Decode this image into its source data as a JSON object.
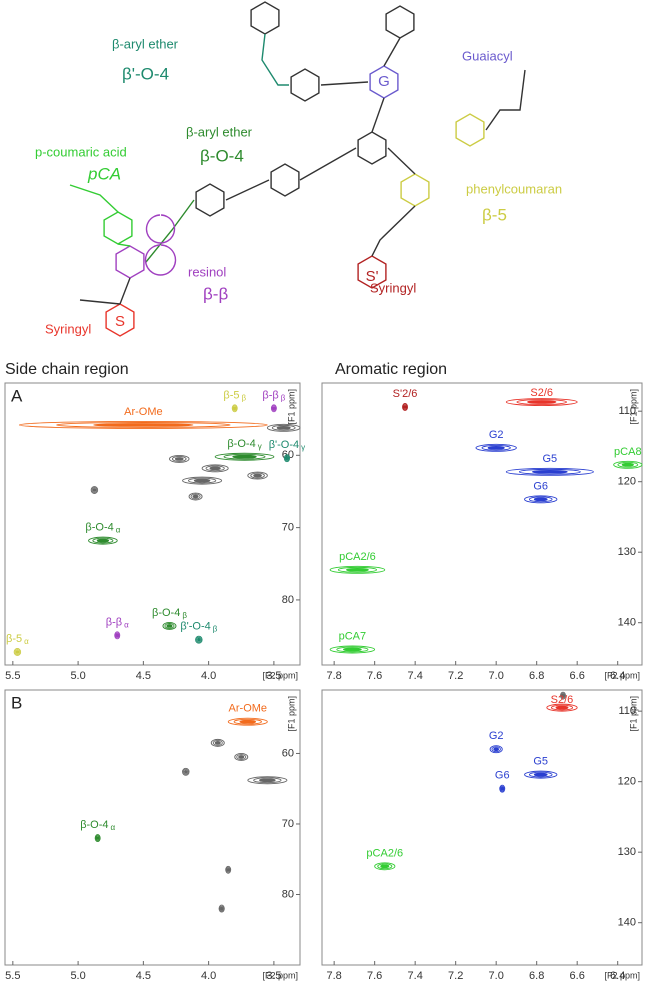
{
  "structure": {
    "labels": [
      "β-aryl ether",
      "β'-O-4",
      "Guaiacyl",
      "β-aryl ether",
      "β-O-4",
      "p-coumaric acid",
      "pCA",
      "phenylcoumaran",
      "β-5",
      "resinol",
      "β-β",
      "Syringyl",
      "Syringyl",
      "G",
      "S'",
      "S"
    ]
  },
  "spectra": {
    "headings": [
      "Side chain region",
      "Aromatic region"
    ],
    "panels": [
      {
        "letter": "A",
        "xlabel": "[F2 ppm]",
        "ylabel": "[F1 ppm]",
        "xlim": [
          5.56,
          3.3
        ],
        "xticks": [
          5.5,
          {
            "value": 5,
            "label": "5.0"
          },
          4.5,
          {
            "value": 4,
            "label": "4.0"
          },
          3.5
        ],
        "ylim": [
          50,
          89
        ],
        "yticks": [
          60,
          70,
          80
        ],
        "unassigned_color": "#666666",
        "peaks": [
          {
            "label": "Ar-OMe",
            "x": [
              5.45,
              3.55
            ],
            "y": 55.8,
            "color": "#f26b1d"
          },
          {
            "label": "β-5",
            "sub": "β",
            "x": [
              3.8,
              3.8
            ],
            "y": 53.5,
            "color": "#cccc44"
          },
          {
            "label": "β-β",
            "sub": "β",
            "x": [
              3.5,
              3.5
            ],
            "y": 53.5,
            "color": "#a040c0"
          },
          {
            "label": "β-O-4",
            "sub": "γ",
            "x": [
              3.95,
              3.5
            ],
            "y": 60.2,
            "color": "#2e8b2e"
          },
          {
            "label": "β'-O-4",
            "sub": "γ",
            "x": [
              3.42,
              3.38
            ],
            "y": 60.4,
            "color": "#1e8a6e"
          },
          {
            "label": "β-O-4",
            "sub": "α",
            "x": [
              4.92,
              4.7
            ],
            "y": 71.8,
            "color": "#2e8b2e"
          },
          {
            "label": "β-O-4",
            "sub": "β",
            "x": [
              4.35,
              4.25
            ],
            "y": 83.6,
            "color": "#2e8b2e"
          },
          {
            "label": "β'-O-4",
            "sub": "β",
            "x": [
              4.1,
              4.05
            ],
            "y": 85.5,
            "color": "#1e8a6e"
          },
          {
            "label": "β-β",
            "sub": "α",
            "x": [
              4.71,
              4.69
            ],
            "y": 84.9,
            "color": "#a040c0"
          },
          {
            "label": "β-5",
            "sub": "α",
            "x": [
              5.49,
              5.44
            ],
            "y": 87.2,
            "color": "#cccc44"
          }
        ],
        "unassigned": [
          {
            "x": [
              3.55,
              3.3
            ],
            "y": 56.2
          },
          {
            "x": [
              4.3,
              4.15
            ],
            "y": 60.5
          },
          {
            "x": [
              4.05,
              3.85
            ],
            "y": 61.8
          },
          {
            "x": [
              4.2,
              3.9
            ],
            "y": 63.5
          },
          {
            "x": [
              4.15,
              4.05
            ],
            "y": 65.7
          },
          {
            "x": [
              4.9,
              4.85
            ],
            "y": 64.8
          },
          {
            "x": [
              3.7,
              3.55
            ],
            "y": 62.8
          }
        ]
      },
      {
        "letter": "",
        "xlabel": "[F2 ppm]",
        "ylabel": "[F1 ppm]",
        "xlim": [
          7.86,
          6.28
        ],
        "xticks": [
          7.8,
          7.6,
          7.4,
          7.2,
          {
            "value": 7,
            "label": "7.0"
          },
          6.8,
          6.6,
          6.4
        ],
        "ylim": [
          106,
          146
        ],
        "yticks": [
          110,
          120,
          130,
          140
        ],
        "unassigned_color": "#666666",
        "peaks": [
          {
            "label": "S'2/6",
            "x": [
              7.46,
              7.44
            ],
            "y": 109.4,
            "color": "#b22222"
          },
          {
            "label": "S2/6",
            "x": [
              6.95,
              6.6
            ],
            "y": 108.7,
            "color": "#e8352b"
          },
          {
            "label": "G2",
            "x": [
              7.1,
              6.9
            ],
            "y": 115.2,
            "color": "#2a3fd0"
          },
          {
            "label": "G5",
            "x": [
              6.95,
              6.52
            ],
            "y": 118.6,
            "color": "#2a3fd0"
          },
          {
            "label": "G6",
            "x": [
              6.86,
              6.7
            ],
            "y": 122.5,
            "color": "#2a3fd0"
          },
          {
            "label": "pCA8",
            "x": [
              6.42,
              6.28
            ],
            "y": 117.6,
            "color": "#33cc33"
          },
          {
            "label": "pCA2/6",
            "x": [
              7.82,
              7.55
            ],
            "y": 132.5,
            "color": "#33cc33"
          },
          {
            "label": "pCA7",
            "x": [
              7.82,
              7.6
            ],
            "y": 143.8,
            "color": "#33cc33"
          }
        ],
        "unassigned": []
      },
      {
        "letter": "B",
        "xlabel": "[F2 ppm]",
        "ylabel": "[F1 ppm]",
        "xlim": [
          5.56,
          3.3
        ],
        "xticks": [
          5.5,
          {
            "value": 5,
            "label": "5.0"
          },
          4.5,
          {
            "value": 4,
            "label": "4.0"
          },
          3.5
        ],
        "ylim": [
          51,
          90
        ],
        "yticks": [
          60,
          70,
          80
        ],
        "unassigned_color": "#666666",
        "peaks": [
          {
            "label": "Ar-OMe",
            "x": [
              3.85,
              3.55
            ],
            "y": 55.5,
            "color": "#f26b1d"
          },
          {
            "label": "β-O-4",
            "sub": "α",
            "x": [
              4.86,
              4.84
            ],
            "y": 72,
            "color": "#2e8b2e"
          }
        ],
        "unassigned": [
          {
            "x": [
              3.98,
              3.88
            ],
            "y": 58.5
          },
          {
            "x": [
              3.8,
              3.7
            ],
            "y": 60.5
          },
          {
            "x": [
              3.7,
              3.4
            ],
            "y": 63.8
          },
          {
            "x": [
              4.2,
              4.15
            ],
            "y": 62.6
          },
          {
            "x": [
              3.86,
              3.84
            ],
            "y": 76.5
          },
          {
            "x": [
              3.92,
              3.88
            ],
            "y": 82
          }
        ]
      },
      {
        "letter": "",
        "xlabel": "[F2 ppm]",
        "ylabel": "[F1 ppm]",
        "xlim": [
          7.86,
          6.28
        ],
        "xticks": [
          7.8,
          7.6,
          7.4,
          7.2,
          {
            "value": 7,
            "label": "7.0"
          },
          6.8,
          6.6,
          6.4
        ],
        "ylim": [
          107,
          146
        ],
        "yticks": [
          110,
          120,
          130,
          140
        ],
        "unassigned_color": "#666666",
        "peaks": [
          {
            "label": "S2/6",
            "x": [
              6.75,
              6.6
            ],
            "y": 109.5,
            "color": "#e8352b"
          },
          {
            "label": "G2",
            "x": [
              7.03,
              6.97
            ],
            "y": 115.4,
            "color": "#2a3fd0"
          },
          {
            "label": "G5",
            "x": [
              6.86,
              6.7
            ],
            "y": 119,
            "color": "#2a3fd0"
          },
          {
            "label": "G6",
            "x": [
              6.98,
              6.96
            ],
            "y": 121,
            "color": "#2a3fd0"
          },
          {
            "label": "pCA2/6",
            "x": [
              7.6,
              7.5
            ],
            "y": 132,
            "color": "#33cc33"
          }
        ],
        "unassigned": [
          {
            "x": [
              6.68,
              6.66
            ],
            "y": 107.8
          }
        ]
      }
    ]
  }
}
